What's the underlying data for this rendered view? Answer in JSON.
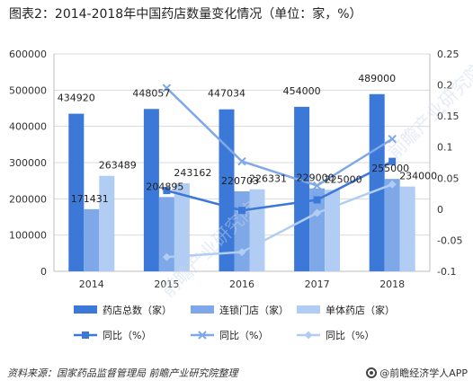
{
  "title": "图表2：2014-2018年中国药店数量变化情况（单位：家，%）",
  "source": "资料来源：国家药品监督管理局  前瞻产业研究院整理",
  "brand": "@前瞻经济学人APP",
  "watermark": "前瞻产业研究院",
  "colors": {
    "total": "#3c78d8",
    "chain": "#7ea8e8",
    "single": "#b2cdf3",
    "growth_total": "#3c78d8",
    "growth_chain": "#7ea8e8",
    "growth_single": "#b2cdf3"
  },
  "chart_data": {
    "type": "bar",
    "categories": [
      "2014",
      "2015",
      "2016",
      "2017",
      "2018"
    ],
    "ylim": [
      0,
      600000
    ],
    "yticks": [
      "0",
      "100000",
      "200000",
      "300000",
      "400000",
      "500000",
      "600000"
    ],
    "y2lim": [
      -0.1,
      0.25
    ],
    "y2ticks": [
      "-0.1",
      "-0.05",
      "0",
      "0.05",
      "0.1",
      "0.15",
      "0.2",
      "0.25"
    ],
    "grid": true,
    "legend_position": "bottom",
    "series": [
      {
        "name": "药店总数（家）",
        "type": "bar",
        "axis": "left",
        "color_key": "total",
        "values": [
          434920,
          448057,
          447034,
          454000,
          489000
        ],
        "labels": [
          "434920",
          "448057",
          "447034",
          "454000",
          "489000"
        ]
      },
      {
        "name": "连锁门店（家）",
        "type": "bar",
        "axis": "left",
        "color_key": "chain",
        "values": [
          171431,
          204895,
          220703,
          229000,
          255000
        ],
        "labels": [
          "171431",
          "204895",
          "220703",
          "229000",
          "255000"
        ]
      },
      {
        "name": "单体药店（家）",
        "type": "bar",
        "axis": "left",
        "color_key": "single",
        "values": [
          263489,
          243162,
          226331,
          225000,
          234000
        ],
        "labels": [
          "263489",
          "243162",
          "226331",
          "225000",
          "234000"
        ]
      },
      {
        "name": "同比（%）",
        "type": "line",
        "axis": "right",
        "marker": "square",
        "color_key": "growth_total",
        "values": [
          null,
          0.03,
          -0.002,
          0.015,
          0.077
        ]
      },
      {
        "name": "同比（%）",
        "type": "line",
        "axis": "right",
        "marker": "x",
        "color_key": "growth_chain",
        "values": [
          null,
          0.195,
          0.077,
          0.038,
          0.113
        ]
      },
      {
        "name": "同比（%）",
        "type": "line",
        "axis": "right",
        "marker": "diamond",
        "color_key": "growth_single",
        "values": [
          null,
          -0.077,
          -0.069,
          -0.006,
          0.04
        ]
      }
    ]
  }
}
